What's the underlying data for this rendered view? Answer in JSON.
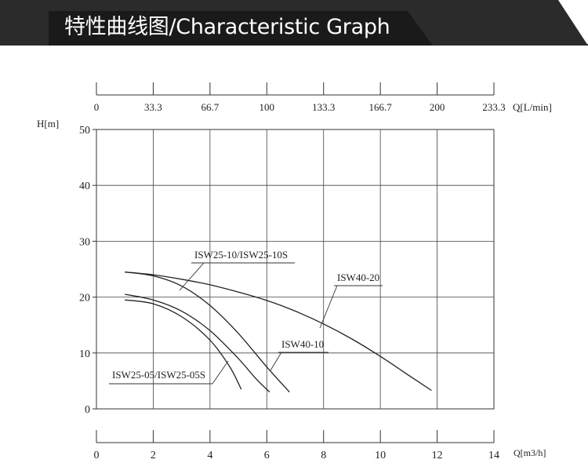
{
  "header": {
    "title": "特性曲线图/Characteristic Graph",
    "bar_color": "#1a1a1a",
    "stripe_color": "#2b2b2b",
    "rule_color": "#555555"
  },
  "chart_data": {
    "type": "line",
    "grid": true,
    "ylabel": "H[m]",
    "xlabel": "Q[m3/h]",
    "top_axis_label": "Q[L/min]",
    "xlim": [
      0,
      14
    ],
    "ylim": [
      0,
      50
    ],
    "x_ticks": [
      "0",
      "2",
      "4",
      "6",
      "8",
      "10",
      "12",
      "14"
    ],
    "y_ticks": [
      "0",
      "10",
      "20",
      "30",
      "40",
      "50"
    ],
    "top_x_ticks": [
      "0",
      "33.3",
      "66.7",
      "100",
      "133.3",
      "166.7",
      "200",
      "233.3"
    ],
    "series": [
      {
        "name": "ISW25-05/ISW25-05S",
        "x": [
          1,
          2,
          3,
          4,
          4.7,
          5.1
        ],
        "y": [
          19.5,
          18.8,
          16.5,
          12.3,
          7.5,
          3.5
        ]
      },
      {
        "name": "ISW40-10",
        "x": [
          1,
          2,
          3,
          4,
          5,
          5.6,
          6.1
        ],
        "y": [
          20.5,
          19.5,
          17.5,
          14,
          9,
          5.5,
          3
        ]
      },
      {
        "name": "ISW25-10/ISW25-10S",
        "x": [
          1,
          2,
          3,
          4,
          5,
          6,
          6.8
        ],
        "y": [
          24.5,
          23.8,
          22,
          18.5,
          13.5,
          7.5,
          3
        ]
      },
      {
        "name": "ISW40-20",
        "x": [
          1,
          2,
          3,
          4,
          5,
          6,
          7,
          8,
          9,
          10,
          11,
          11.8
        ],
        "y": [
          24.5,
          24,
          23.2,
          22.2,
          20.9,
          19.4,
          17.5,
          15.2,
          12.5,
          9.4,
          6,
          3.3
        ]
      }
    ],
    "annotations": [
      {
        "text": "ISW25-10/ISW25-10S",
        "series": "ISW25-10/ISW25-10S"
      },
      {
        "text": "ISW40-20",
        "series": "ISW40-20"
      },
      {
        "text": "ISW40-10",
        "series": "ISW40-10"
      },
      {
        "text": "ISW25-05/ISW25-05S",
        "series": "ISW25-05/ISW25-05S"
      }
    ]
  }
}
